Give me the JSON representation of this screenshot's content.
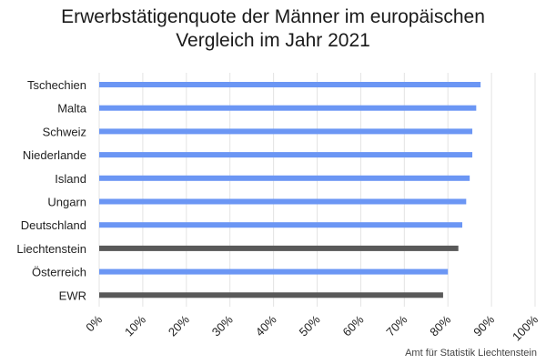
{
  "chart_data": {
    "type": "bar",
    "orientation": "horizontal",
    "title_lines": [
      "Erwerbstätigenquote der Männer im europäischen",
      "Vergleich im Jahr 2021"
    ],
    "categories": [
      "Tschechien",
      "Malta",
      "Schweiz",
      "Niederlande",
      "Island",
      "Ungarn",
      "Deutschland",
      "Liechtenstein",
      "Österreich",
      "EWR"
    ],
    "values": [
      87.5,
      86.5,
      85.6,
      85.6,
      85.0,
      84.2,
      83.3,
      82.4,
      80.0,
      78.9
    ],
    "highlighted": [
      "Liechtenstein",
      "EWR"
    ],
    "colors": {
      "default": "#6b96f4",
      "highlight": "#595959"
    },
    "xlim": [
      0,
      100
    ],
    "xticks": [
      "0%",
      "10%",
      "20%",
      "30%",
      "40%",
      "50%",
      "60%",
      "70%",
      "80%",
      "90%",
      "100%"
    ],
    "grid": true
  },
  "source": "Amt für Statistik Liechtenstein"
}
